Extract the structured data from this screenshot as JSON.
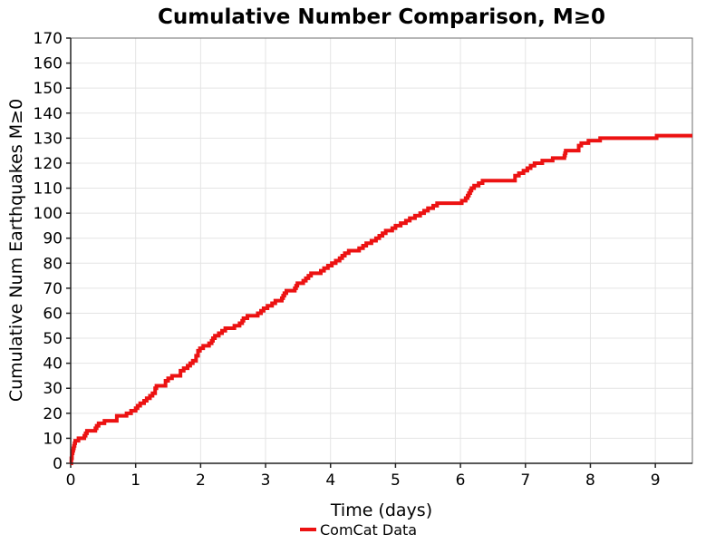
{
  "figure": {
    "title": "Cumulative Number Comparison, M≥0"
  },
  "chart_data": {
    "type": "line",
    "step_mode": "post",
    "title": "Cumulative Number Comparison, M≥0",
    "xlabel": "Time (days)",
    "ylabel": "Cumulative Num Earthquakes M≥0",
    "xlim": [
      0,
      9.57
    ],
    "ylim": [
      0,
      170
    ],
    "xticks": [
      0,
      1,
      2,
      3,
      4,
      5,
      6,
      7,
      8,
      9
    ],
    "yticks": [
      0,
      10,
      20,
      30,
      40,
      50,
      60,
      70,
      80,
      90,
      100,
      110,
      120,
      130,
      140,
      150,
      160,
      170
    ],
    "grid": true,
    "legend": {
      "position": "bottom-center",
      "entries": [
        {
          "label": "ComCat Data",
          "color": "#ec1212"
        }
      ]
    },
    "series": [
      {
        "name": "ComCat Data",
        "color": "#ec1212",
        "line_width": 4,
        "points": [
          [
            0,
            0
          ],
          [
            0.01,
            2
          ],
          [
            0.02,
            4
          ],
          [
            0.03,
            5
          ],
          [
            0.04,
            6
          ],
          [
            0.05,
            7
          ],
          [
            0.06,
            8
          ],
          [
            0.07,
            9
          ],
          [
            0.12,
            10
          ],
          [
            0.21,
            11
          ],
          [
            0.23,
            12
          ],
          [
            0.25,
            13
          ],
          [
            0.38,
            14
          ],
          [
            0.4,
            15
          ],
          [
            0.43,
            16
          ],
          [
            0.52,
            17
          ],
          [
            0.71,
            19
          ],
          [
            0.86,
            20
          ],
          [
            0.93,
            21
          ],
          [
            1.0,
            22
          ],
          [
            1.03,
            23
          ],
          [
            1.07,
            24
          ],
          [
            1.13,
            25
          ],
          [
            1.17,
            26
          ],
          [
            1.22,
            27
          ],
          [
            1.26,
            28
          ],
          [
            1.3,
            30
          ],
          [
            1.32,
            31
          ],
          [
            1.46,
            33
          ],
          [
            1.5,
            34
          ],
          [
            1.56,
            35
          ],
          [
            1.69,
            37
          ],
          [
            1.74,
            38
          ],
          [
            1.8,
            39
          ],
          [
            1.84,
            40
          ],
          [
            1.88,
            41
          ],
          [
            1.93,
            43
          ],
          [
            1.96,
            45
          ],
          [
            1.99,
            46
          ],
          [
            2.04,
            47
          ],
          [
            2.13,
            48
          ],
          [
            2.17,
            49
          ],
          [
            2.19,
            50
          ],
          [
            2.22,
            51
          ],
          [
            2.28,
            52
          ],
          [
            2.33,
            53
          ],
          [
            2.38,
            54
          ],
          [
            2.52,
            55
          ],
          [
            2.6,
            56
          ],
          [
            2.64,
            57
          ],
          [
            2.66,
            58
          ],
          [
            2.72,
            59
          ],
          [
            2.88,
            60
          ],
          [
            2.93,
            61
          ],
          [
            2.97,
            62
          ],
          [
            3.03,
            63
          ],
          [
            3.1,
            64
          ],
          [
            3.15,
            65
          ],
          [
            3.25,
            66
          ],
          [
            3.27,
            67
          ],
          [
            3.29,
            68
          ],
          [
            3.32,
            69
          ],
          [
            3.45,
            70
          ],
          [
            3.47,
            71
          ],
          [
            3.49,
            72
          ],
          [
            3.58,
            73
          ],
          [
            3.62,
            74
          ],
          [
            3.66,
            75
          ],
          [
            3.7,
            76
          ],
          [
            3.85,
            77
          ],
          [
            3.9,
            78
          ],
          [
            3.96,
            79
          ],
          [
            4.02,
            80
          ],
          [
            4.08,
            81
          ],
          [
            4.14,
            82
          ],
          [
            4.18,
            83
          ],
          [
            4.22,
            84
          ],
          [
            4.28,
            85
          ],
          [
            4.44,
            86
          ],
          [
            4.5,
            87
          ],
          [
            4.55,
            88
          ],
          [
            4.63,
            89
          ],
          [
            4.7,
            90
          ],
          [
            4.75,
            91
          ],
          [
            4.8,
            92
          ],
          [
            4.85,
            93
          ],
          [
            4.95,
            94
          ],
          [
            5.0,
            95
          ],
          [
            5.08,
            96
          ],
          [
            5.16,
            97
          ],
          [
            5.22,
            98
          ],
          [
            5.3,
            99
          ],
          [
            5.38,
            100
          ],
          [
            5.44,
            101
          ],
          [
            5.5,
            102
          ],
          [
            5.58,
            103
          ],
          [
            5.64,
            104
          ],
          [
            6.02,
            105
          ],
          [
            6.08,
            106
          ],
          [
            6.11,
            107
          ],
          [
            6.13,
            108
          ],
          [
            6.15,
            109
          ],
          [
            6.17,
            110
          ],
          [
            6.21,
            111
          ],
          [
            6.28,
            112
          ],
          [
            6.34,
            113
          ],
          [
            6.84,
            115
          ],
          [
            6.9,
            116
          ],
          [
            6.97,
            117
          ],
          [
            7.03,
            118
          ],
          [
            7.08,
            119
          ],
          [
            7.14,
            120
          ],
          [
            7.26,
            121
          ],
          [
            7.42,
            122
          ],
          [
            7.6,
            123
          ],
          [
            7.61,
            124
          ],
          [
            7.62,
            125
          ],
          [
            7.82,
            127
          ],
          [
            7.86,
            128
          ],
          [
            7.97,
            129
          ],
          [
            8.15,
            130
          ],
          [
            9.02,
            131
          ],
          [
            9.57,
            131
          ]
        ]
      }
    ],
    "colors": {
      "grid": "#e4e4e4",
      "frame": "#6e6e6e",
      "spine": "#222222",
      "tick": "#222222",
      "text": "#000000",
      "background": "#ffffff"
    }
  }
}
